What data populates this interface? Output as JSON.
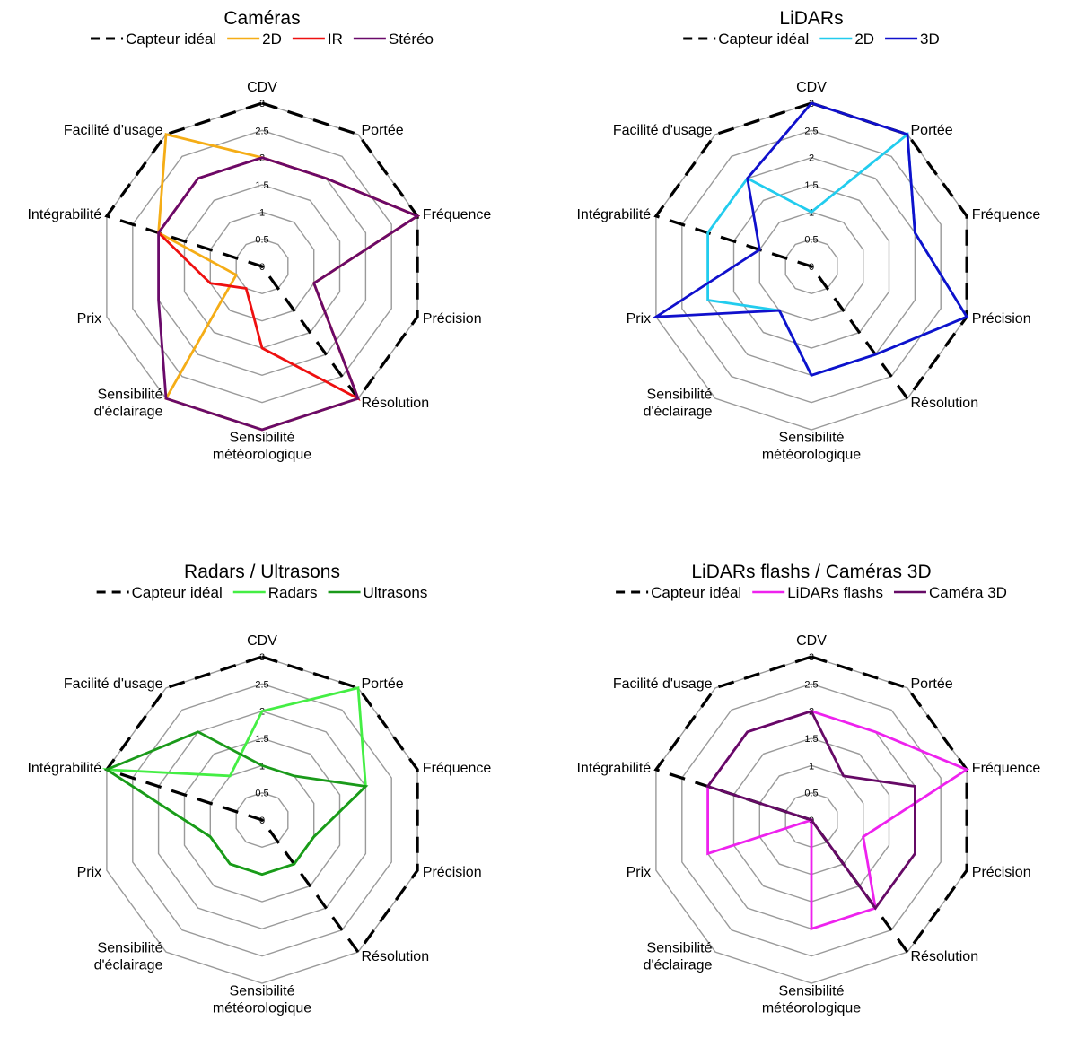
{
  "chart_data": [
    {
      "type": "radar",
      "title": "Caméras",
      "axes": [
        "CDV",
        "Portée",
        "Fréquence",
        "Précision",
        "Résolution",
        "Sensibilité météorologique",
        "Sensibilité d'éclairage",
        "Prix",
        "Intégrabilité",
        "Facilité d'usage"
      ],
      "axis_label_lines": [
        [
          "CDV"
        ],
        [
          "Portée"
        ],
        [
          "Fréquence"
        ],
        [
          "Précision"
        ],
        [
          "Résolution"
        ],
        [
          "Sensibilité",
          "météorologique"
        ],
        [
          "Sensibilité",
          "d'éclairage"
        ],
        [
          "Prix"
        ],
        [
          "Intégrabilité"
        ],
        [
          "Facilité d'usage"
        ]
      ],
      "rlim": [
        0,
        3
      ],
      "ticks": [
        "0",
        "0.5",
        "1",
        "1.5",
        "2",
        "2.5",
        "3"
      ],
      "series": [
        {
          "name": "Capteur idéal",
          "color": "#000000",
          "dash": true,
          "values": [
            3,
            3,
            3,
            3,
            3,
            0,
            0,
            0,
            3,
            3
          ]
        },
        {
          "name": "2D",
          "color": "#F5AD16",
          "values": [
            2,
            2,
            3,
            1,
            3,
            3,
            3,
            0.5,
            2,
            3
          ]
        },
        {
          "name": "IR",
          "color": "#EE1010",
          "values": [
            2,
            2,
            3,
            1,
            3,
            1.5,
            0.5,
            1,
            2,
            2
          ]
        },
        {
          "name": "Stéréo",
          "color": "#6A0A6A",
          "values": [
            2,
            2,
            3,
            1,
            3,
            3,
            3,
            2,
            2,
            2
          ]
        }
      ]
    },
    {
      "type": "radar",
      "title": "LiDARs",
      "axes": [
        "CDV",
        "Portée",
        "Fréquence",
        "Précision",
        "Résolution",
        "Sensibilité météorologique",
        "Sensibilité d'éclairage",
        "Prix",
        "Intégrabilité",
        "Facilité d'usage"
      ],
      "axis_label_lines": [
        [
          "CDV"
        ],
        [
          "Portée"
        ],
        [
          "Fréquence"
        ],
        [
          "Précision"
        ],
        [
          "Résolution"
        ],
        [
          "Sensibilité",
          "météorologique"
        ],
        [
          "Sensibilité",
          "d'éclairage"
        ],
        [
          "Prix"
        ],
        [
          "Intégrabilité"
        ],
        [
          "Facilité d'usage"
        ]
      ],
      "rlim": [
        0,
        3
      ],
      "ticks": [
        "0",
        "0.5",
        "1",
        "1.5",
        "2",
        "2.5",
        "3"
      ],
      "series": [
        {
          "name": "Capteur idéal",
          "color": "#000000",
          "dash": true,
          "values": [
            3,
            3,
            3,
            3,
            3,
            0,
            0,
            0,
            3,
            3
          ]
        },
        {
          "name": "2D",
          "color": "#22CCEE",
          "values": [
            1,
            3,
            2,
            3,
            2,
            2,
            1,
            2,
            2,
            2
          ]
        },
        {
          "name": "3D",
          "color": "#1010CC",
          "values": [
            3,
            3,
            2,
            3,
            2,
            2,
            1,
            3,
            1,
            2
          ]
        }
      ]
    },
    {
      "type": "radar",
      "title": "Radars / Ultrasons",
      "axes": [
        "CDV",
        "Portée",
        "Fréquence",
        "Précision",
        "Résolution",
        "Sensibilité météorologique",
        "Sensibilité d'éclairage",
        "Prix",
        "Intégrabilité",
        "Facilité d'usage"
      ],
      "axis_label_lines": [
        [
          "CDV"
        ],
        [
          "Portée"
        ],
        [
          "Fréquence"
        ],
        [
          "Précision"
        ],
        [
          "Résolution"
        ],
        [
          "Sensibilité",
          "météorologique"
        ],
        [
          "Sensibilité",
          "d'éclairage"
        ],
        [
          "Prix"
        ],
        [
          "Intégrabilité"
        ],
        [
          "Facilité d'usage"
        ]
      ],
      "rlim": [
        0,
        3
      ],
      "ticks": [
        "0",
        "0.5",
        "1",
        "1.5",
        "2",
        "2.5",
        "3"
      ],
      "series": [
        {
          "name": "Capteur idéal",
          "color": "#000000",
          "dash": true,
          "values": [
            3,
            3,
            3,
            3,
            3,
            0,
            0,
            0,
            3,
            3
          ]
        },
        {
          "name": "Radars",
          "color": "#44EE44",
          "values": [
            2,
            3,
            2,
            1,
            1,
            1,
            1,
            1,
            3,
            1
          ]
        },
        {
          "name": "Ultrasons",
          "color": "#1A9A1A",
          "values": [
            1,
            1,
            2,
            1,
            1,
            1,
            1,
            1,
            3,
            2
          ]
        }
      ]
    },
    {
      "type": "radar",
      "title": "LiDARs flashs / Caméras 3D",
      "axes": [
        "CDV",
        "Portée",
        "Fréquence",
        "Précision",
        "Résolution",
        "Sensibilité météorologique",
        "Sensibilité d'éclairage",
        "Prix",
        "Intégrabilité",
        "Facilité d'usage"
      ],
      "axis_label_lines": [
        [
          "CDV"
        ],
        [
          "Portée"
        ],
        [
          "Fréquence"
        ],
        [
          "Précision"
        ],
        [
          "Résolution"
        ],
        [
          "Sensibilité",
          "météorologique"
        ],
        [
          "Sensibilité",
          "d'éclairage"
        ],
        [
          "Prix"
        ],
        [
          "Intégrabilité"
        ],
        [
          "Facilité d'usage"
        ]
      ],
      "rlim": [
        0,
        3
      ],
      "ticks": [
        "0",
        "0.5",
        "1",
        "1.5",
        "2",
        "2.5",
        "3"
      ],
      "series": [
        {
          "name": "Capteur idéal",
          "color": "#000000",
          "dash": true,
          "values": [
            3,
            3,
            3,
            3,
            3,
            0,
            0,
            0,
            3,
            3
          ]
        },
        {
          "name": "LiDARs flashs",
          "color": "#EE22EE",
          "values": [
            2,
            2,
            3,
            1,
            2,
            2,
            0,
            2,
            2,
            2
          ]
        },
        {
          "name": "Caméra 3D",
          "color": "#660A66",
          "values": [
            2,
            1,
            2,
            2,
            2,
            0,
            0,
            0,
            2,
            2
          ]
        }
      ]
    }
  ]
}
